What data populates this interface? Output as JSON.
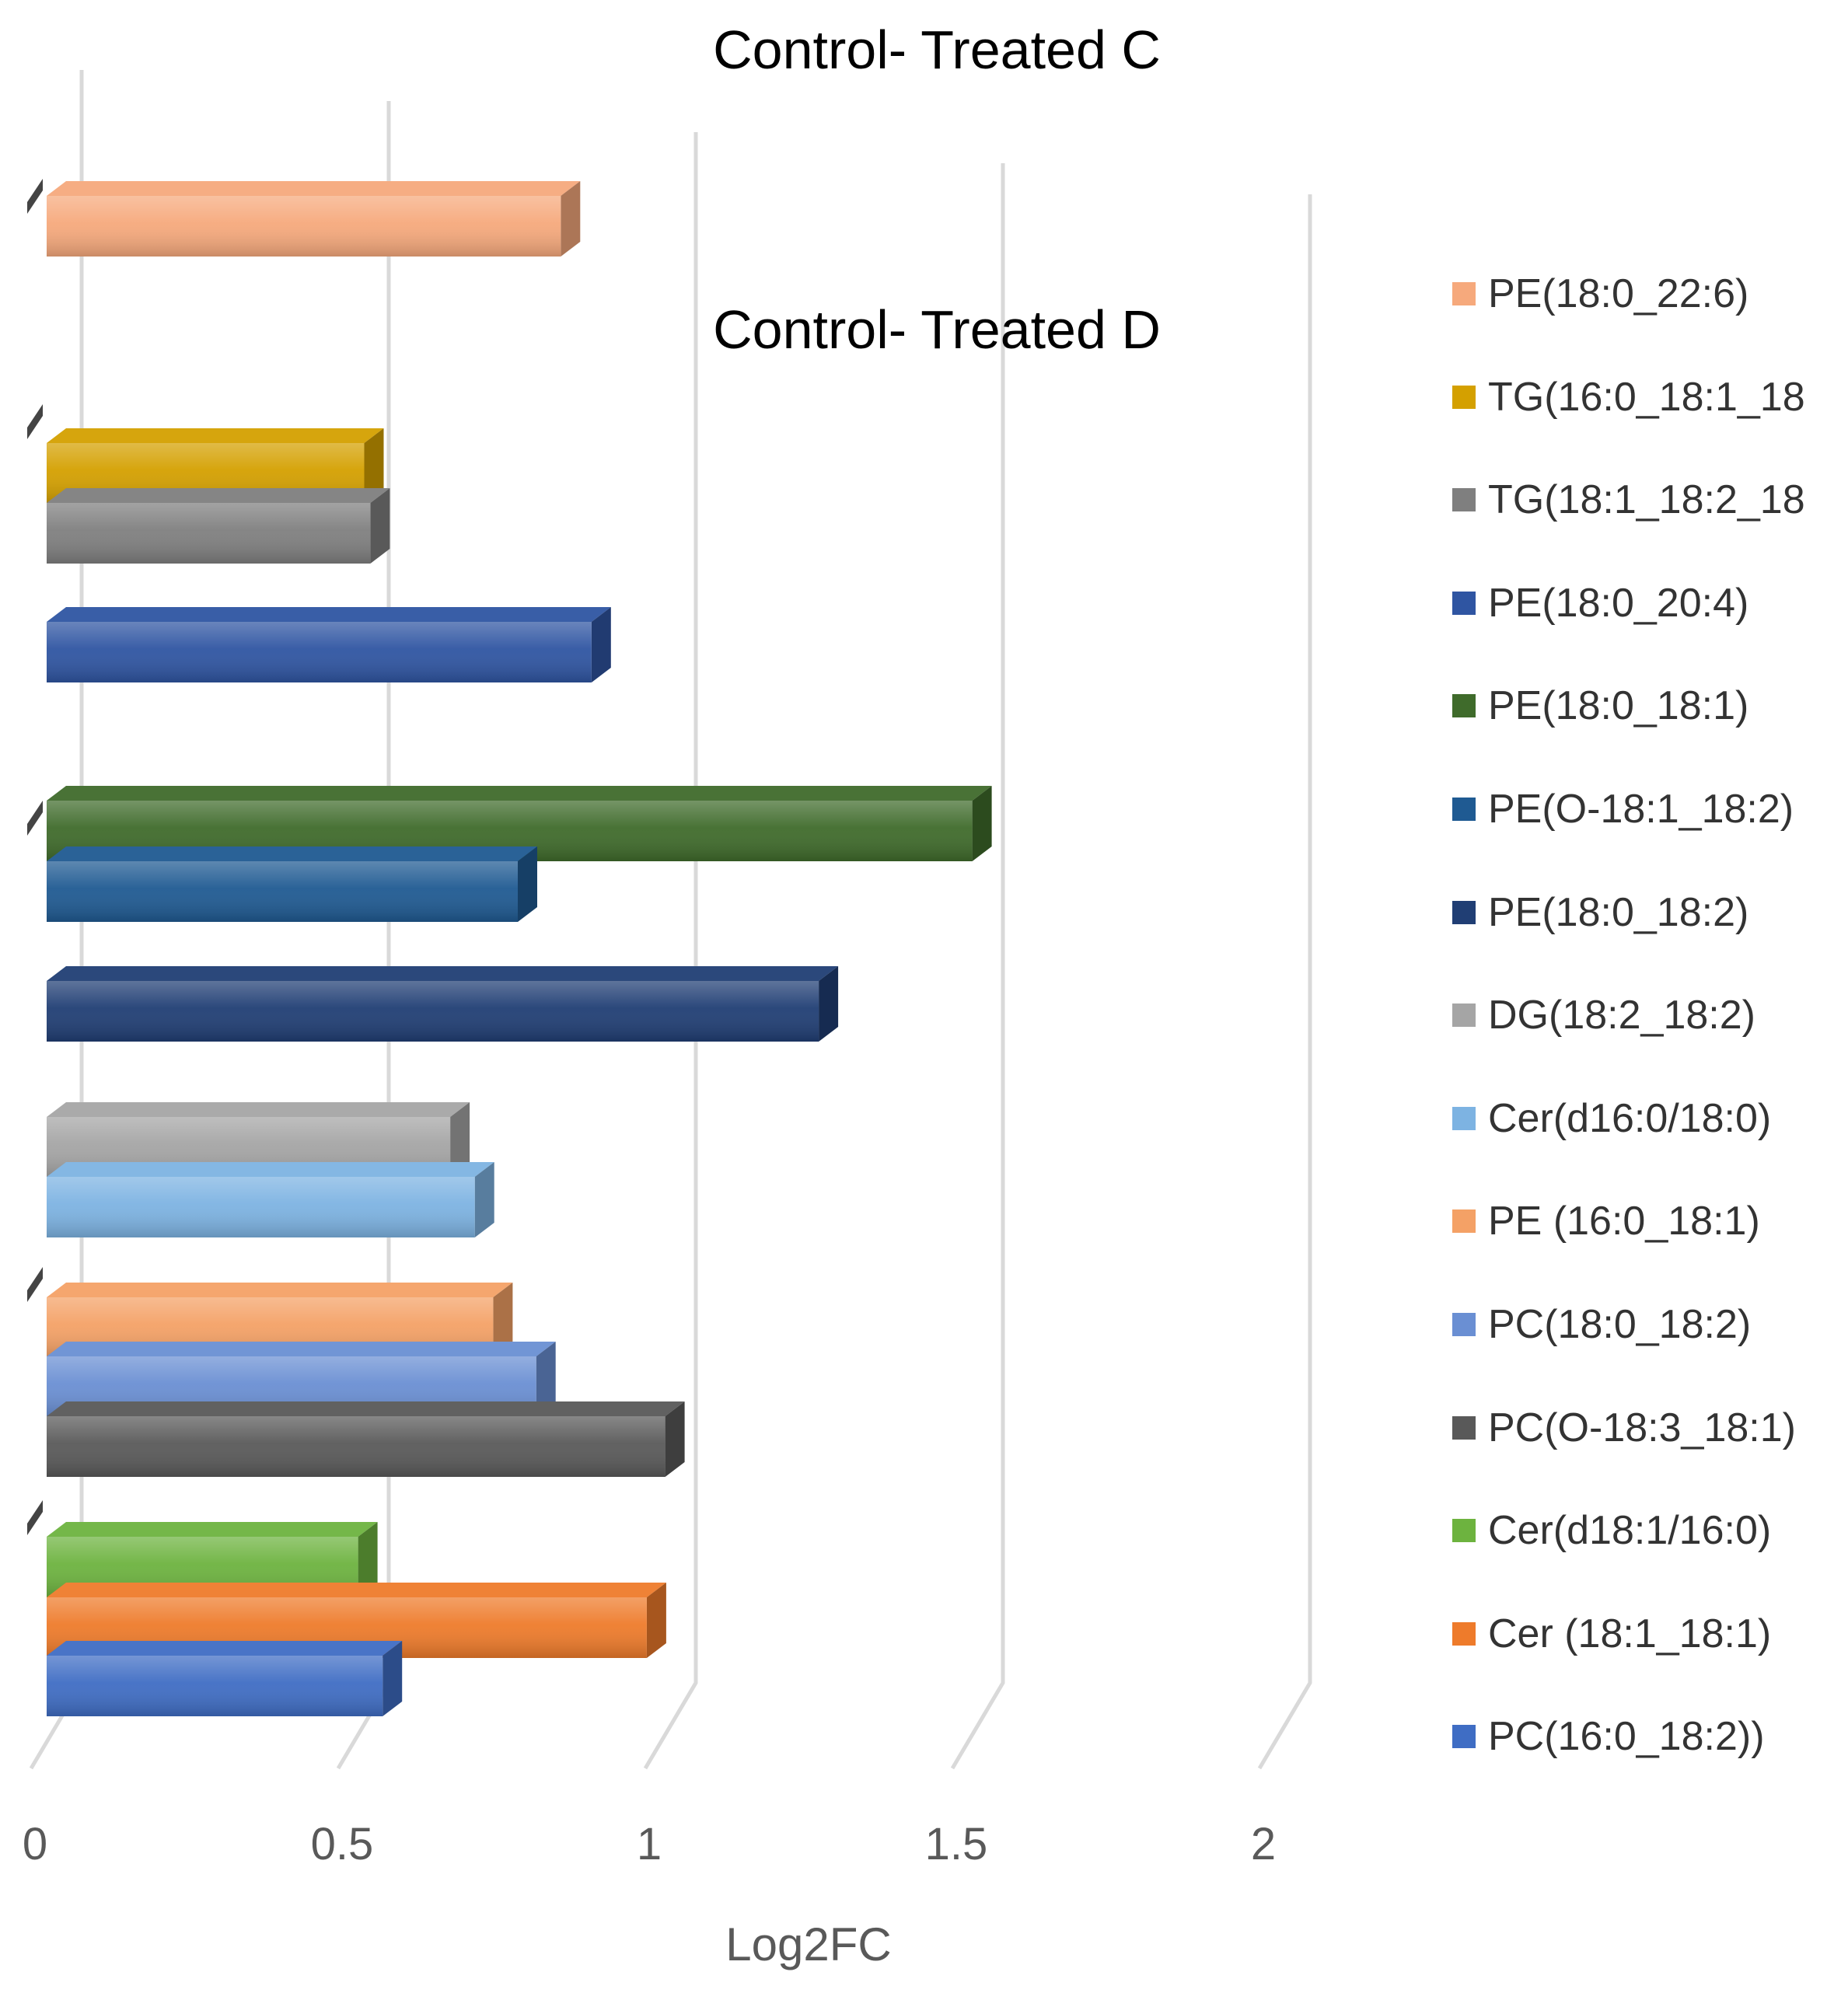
{
  "chart_data": {
    "type": "bar",
    "orientation": "horizontal",
    "style": "3d-clustered",
    "panels": [
      {
        "title": "Control- Treated C",
        "series_labels": [
          "PE(18:0_22:6)"
        ]
      },
      {
        "title": "Control- Treated D",
        "series_labels": [
          "TG(16:0_18:1_18",
          "TG(18:1_18:2_18",
          "PE(18:0_20:4)",
          "PE(18:0_18:1)",
          "PE(O-18:1_18:2)",
          "PE(18:0_18:2)",
          "DG(18:2_18:2)",
          "Cer(d16:0/18:0)",
          "PE (16:0_18:1)",
          "PC(18:0_18:2)",
          "PC(O-18:3_18:1)",
          "Cer(d18:1/16:0)",
          "Cer (18:1_18:1)",
          "PC(16:0_18:2))"
        ]
      }
    ],
    "series": [
      {
        "name": "PE(18:0_22:6)",
        "value": 0.87,
        "panel": 0,
        "color": "#F6A97C"
      },
      {
        "name": "TG(16:0_18:1_18",
        "value": 0.55,
        "panel": 1,
        "color": "#D4A000"
      },
      {
        "name": "TG(18:1_18:2_18",
        "value": 0.56,
        "panel": 1,
        "color": "#7F7F7F"
      },
      {
        "name": "PE(18:0_20:4)",
        "value": 0.92,
        "panel": 1,
        "color": "#2F55A2"
      },
      {
        "name": "PE(18:0_18:1)",
        "value": 1.54,
        "panel": 1,
        "color": "#3F6B2B"
      },
      {
        "name": "PE(O-18:1_18:2)",
        "value": 0.8,
        "panel": 1,
        "color": "#1F5A92"
      },
      {
        "name": "PE(18:0_18:2)",
        "value": 1.29,
        "panel": 1,
        "color": "#203E74"
      },
      {
        "name": "DG(18:2_18:2)",
        "value": 0.69,
        "panel": 1,
        "color": "#A5A5A5"
      },
      {
        "name": "Cer(d16:0/18:0)",
        "value": 0.73,
        "panel": 1,
        "color": "#7DB3E2"
      },
      {
        "name": "PE (16:0_18:1)",
        "value": 0.76,
        "panel": 1,
        "color": "#F4A166"
      },
      {
        "name": "PC(18:0_18:2)",
        "value": 0.83,
        "panel": 1,
        "color": "#6A8FD3"
      },
      {
        "name": "PC(O-18:3_18:1)",
        "value": 1.04,
        "panel": 1,
        "color": "#595959"
      },
      {
        "name": "Cer(d18:1/16:0)",
        "value": 0.54,
        "panel": 1,
        "color": "#6DB33F"
      },
      {
        "name": "Cer (18:1_18:1)",
        "value": 1.01,
        "panel": 1,
        "color": "#EE7B2B"
      },
      {
        "name": "PC(16:0_18:2))",
        "value": 0.58,
        "panel": 1,
        "color": "#3F6DC4"
      }
    ],
    "xaxis": {
      "label": "Log2FC",
      "range": [
        0,
        2
      ],
      "ticks": [
        0,
        0.5,
        1,
        1.5,
        2
      ],
      "tick_labels": [
        "0",
        "0.5",
        "1",
        "1.5",
        "2"
      ]
    },
    "grid": true,
    "legend": {
      "position": "right",
      "items": [
        "PE(18:0_22:6)",
        "TG(16:0_18:1_18",
        "TG(18:1_18:2_18",
        "PE(18:0_20:4)",
        "PE(18:0_18:1)",
        "PE(O-18:1_18:2)",
        "PE(18:0_18:2)",
        "DG(18:2_18:2)",
        "Cer(d16:0/18:0)",
        "PE (16:0_18:1)",
        "PC(18:0_18:2)",
        "PC(O-18:3_18:1)",
        "Cer(d18:1/16:0)",
        "Cer (18:1_18:1)",
        "PC(16:0_18:2))"
      ]
    }
  }
}
